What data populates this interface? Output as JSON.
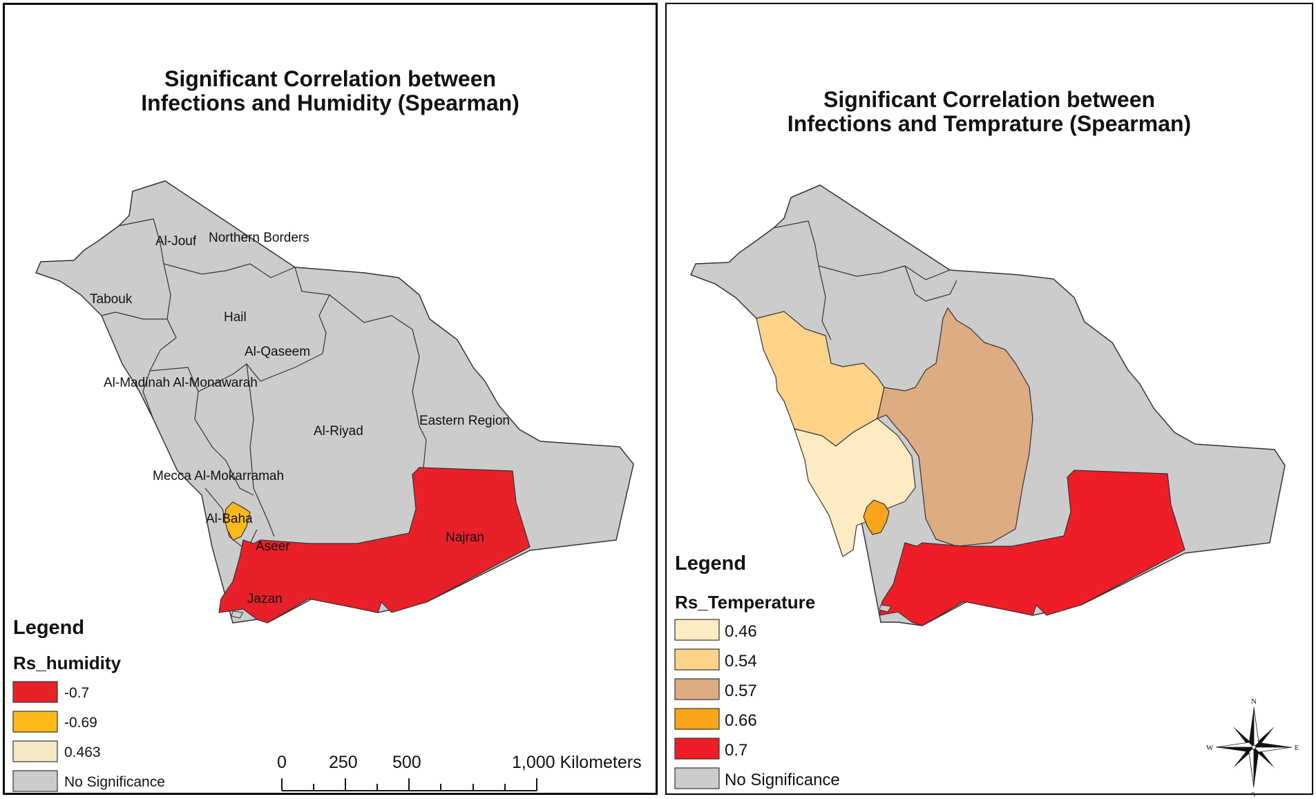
{
  "left_map": {
    "title_line1": "Significant Correlation between",
    "title_line2": "Infections and Humidity (Spearman)",
    "regions": {
      "al_jouf": "Al-Jouf",
      "northern_borders": "Northern Borders",
      "tabouk": "Tabouk",
      "hail": "Hail",
      "al_qaseem": "Al-Qaseem",
      "al_madinah": "Al-Madinah Al-Monawarah",
      "eastern_region": "Eastern Region",
      "al_riyad": "Al-Riyad",
      "mecca": "Mecca Al-Mokarramah",
      "al_baha": "Al-Baha",
      "aseer": "Aseer",
      "najran": "Najran",
      "jazan": "Jazan"
    },
    "legend": {
      "title": "Legend",
      "field": "Rs_humidity",
      "items": [
        {
          "label": "-0.7",
          "color": "#e8202a"
        },
        {
          "label": "-0.69",
          "color": "#fcba1a"
        },
        {
          "label": "0.463",
          "color": "#f4e8c6"
        },
        {
          "label": "No Significance",
          "color": "#cccccc"
        }
      ]
    },
    "scale_bar": {
      "labels": [
        "0",
        "250",
        "500",
        "1,000 Kilometers"
      ]
    }
  },
  "right_map": {
    "title_line1": "Significant Correlation between",
    "title_line2": "Infections and Temprature (Spearman)",
    "legend": {
      "title": "Legend",
      "field": "Rs_Temperature",
      "items": [
        {
          "label": "0.46",
          "color": "#fdebc3"
        },
        {
          "label": "0.54",
          "color": "#fdd38a"
        },
        {
          "label": "0.57",
          "color": "#ddac82"
        },
        {
          "label": "0.66",
          "color": "#f9a51c"
        },
        {
          "label": "0.7",
          "color": "#ee1d27"
        },
        {
          "label": "No Significance",
          "color": "#cccccc"
        }
      ]
    },
    "compass": {
      "n": "N",
      "s": "S",
      "e": "E",
      "w": "W"
    }
  },
  "colors": {
    "no_significance": "#cccccc",
    "border": "#333333"
  }
}
